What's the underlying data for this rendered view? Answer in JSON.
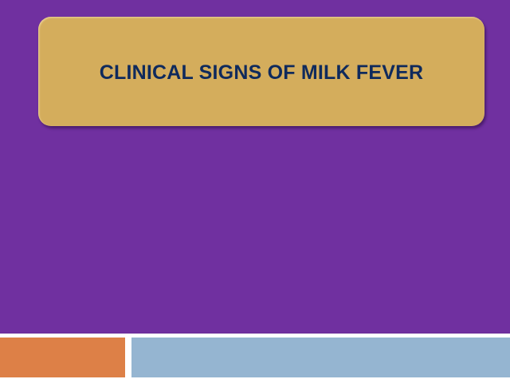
{
  "slide": {
    "title": "CLINICAL SIGNS OF MILK FEVER",
    "colors": {
      "background": "#7030a0",
      "title_box": "#d4ad5c",
      "title_text": "#0f2a5c",
      "accent_bar_left": "#dd8047",
      "accent_bar_right": "#95b5d1"
    }
  }
}
